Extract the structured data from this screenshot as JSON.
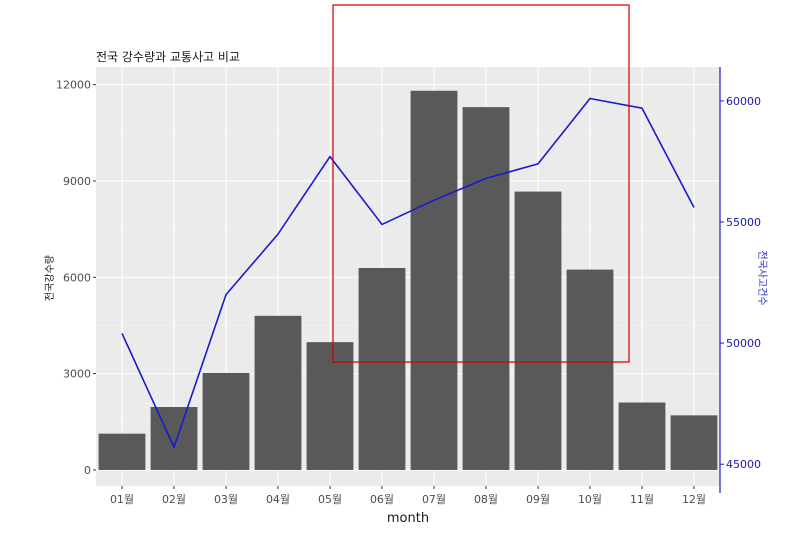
{
  "chart_data": {
    "type": "bar+line",
    "title": "전국 강수량과 교통사고 비교",
    "categories": [
      "01월",
      "02월",
      "03월",
      "04월",
      "05월",
      "06월",
      "07월",
      "08월",
      "09월",
      "10월",
      "11월",
      "12월"
    ],
    "xlabel": "month",
    "ylabel": "전국강수량",
    "ylabel_right": "전국사고건수",
    "series": [
      {
        "name": "전국강수량",
        "type": "bar",
        "axis": "left",
        "values": [
          1130,
          1960,
          3020,
          4800,
          3980,
          6290,
          11810,
          11300,
          8670,
          6240,
          2100,
          1700
        ],
        "color": "#595959"
      },
      {
        "name": "전국사고건수",
        "type": "line",
        "axis": "right",
        "values": [
          50400,
          45700,
          52000,
          54500,
          57700,
          54900,
          55900,
          56800,
          57400,
          60100,
          59700,
          55600
        ],
        "color": "#1a1acc"
      }
    ],
    "ylim": [
      -500,
      12550
    ],
    "yticks": [
      0,
      3000,
      6000,
      9000,
      12000
    ],
    "ylim_right": [
      44100,
      61400
    ],
    "yticks_right": [
      45000,
      50000,
      55000,
      60000
    ],
    "grid": true,
    "panel_background": "#ebebeb",
    "annotation_rect_color": "#cc0000"
  }
}
